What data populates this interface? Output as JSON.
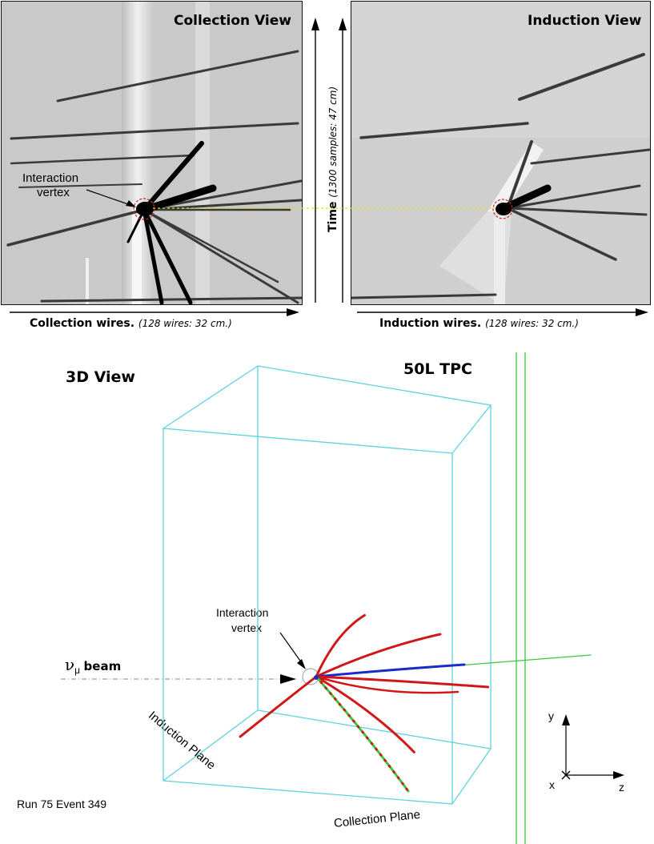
{
  "top_panels": {
    "collection": {
      "title": "Collection View",
      "axis_label": "Collection wires.",
      "axis_note": "(128 wires: 32 cm.)"
    },
    "induction": {
      "title": "Induction View",
      "axis_label": "Induction wires.",
      "axis_note": "(128 wires: 32 cm.)"
    },
    "time_axis": {
      "label": "Time",
      "note": "(1300 samples: 47 cm)"
    },
    "vertex_label_line1": "Interaction",
    "vertex_label_line2": "vertex"
  },
  "view3d": {
    "title": "3D View",
    "tpc_label": "50L TPC",
    "vertex_label_line1": "Interaction",
    "vertex_label_line2": "vertex",
    "beam_symbol": "ν",
    "beam_subscript": "μ",
    "beam_word": "beam",
    "induction_plane": "Induction Plane",
    "collection_plane": "Collection Plane",
    "run_event": "Run 75 Event 349",
    "axes": {
      "y": "y",
      "x": "x",
      "z": "z"
    }
  },
  "colors": {
    "box_edge": "#5ed3e0",
    "track_red": "#d01818",
    "track_blue": "#1a2cc8",
    "track_green": "#3cc83c",
    "vertex_circle": "#cc2222",
    "dashed_link": "#e0e000"
  }
}
